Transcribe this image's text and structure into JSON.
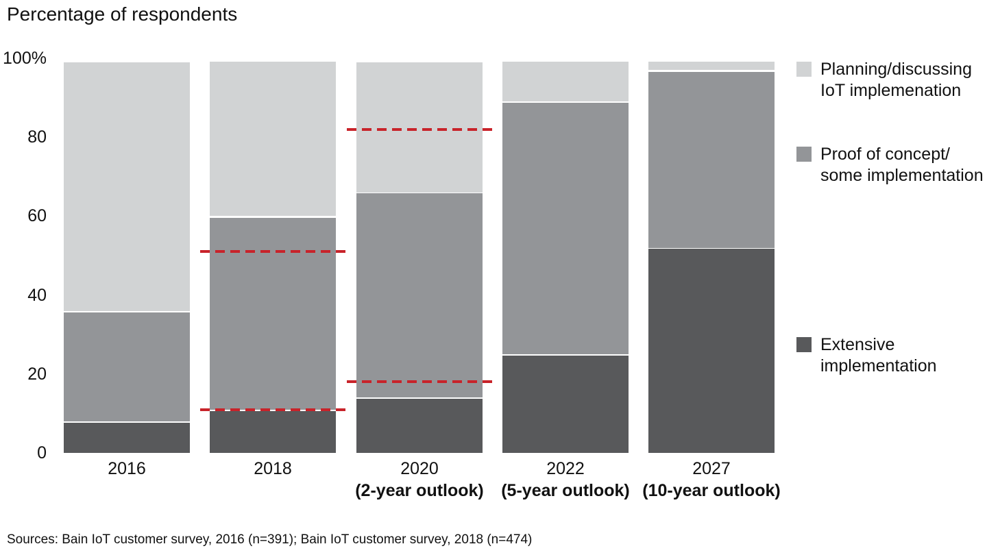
{
  "title": "Percentage of respondents",
  "source": "Sources: Bain IoT customer survey, 2016 (n=391); Bain IoT customer survey, 2018 (n=474)",
  "colors": {
    "planning": "#d1d3d4",
    "proof": "#939598",
    "extensive": "#58595b",
    "reference_red": "#c8232a",
    "text": "#111111",
    "background": "#ffffff"
  },
  "chart_data": {
    "type": "bar",
    "stacked": true,
    "title": "Percentage of respondents",
    "xlabel": "",
    "ylabel": "Percentage of respondents",
    "ylim": [
      0,
      100
    ],
    "grid": false,
    "legend_position": "right",
    "categories": [
      "2016",
      "2018",
      "2020",
      "2022",
      "2027"
    ],
    "category_sublabels": [
      "",
      "",
      "(2-year outlook)",
      "(5-year outlook)",
      "(10-year outlook)"
    ],
    "series": [
      {
        "name": "Extensive implementation",
        "color_key": "extensive",
        "values": [
          8,
          11,
          14,
          25,
          52
        ]
      },
      {
        "name": "Proof of concept/some implementation",
        "color_key": "proof",
        "values": [
          28,
          49,
          52,
          64,
          45
        ]
      },
      {
        "name": "Planning/discussing IoT implemenation",
        "color_key": "planning",
        "values": [
          63,
          39,
          33,
          10,
          2
        ]
      }
    ],
    "y_ticks": [
      {
        "label": "100%",
        "value": 100
      },
      {
        "label": "80",
        "value": 80
      },
      {
        "label": "60",
        "value": 60
      },
      {
        "label": "40",
        "value": 40
      },
      {
        "label": "20",
        "value": 20
      },
      {
        "label": "0",
        "value": 0
      }
    ],
    "reference_lines": [
      {
        "value": 82,
        "over_category": "2020",
        "style": "dashed",
        "color_key": "reference_red"
      },
      {
        "value": 51,
        "over_category": "2018",
        "style": "dashed",
        "color_key": "reference_red"
      },
      {
        "value": 18,
        "over_category": "2020",
        "style": "dashed",
        "color_key": "reference_red"
      },
      {
        "value": 11,
        "over_category": "2018",
        "style": "dashed",
        "color_key": "reference_red"
      }
    ]
  },
  "legend": {
    "items": [
      {
        "label_lines": [
          "Planning/discussing",
          "IoT implemenation"
        ],
        "color_key": "planning"
      },
      {
        "label_lines": [
          "Proof of concept/",
          "some implementation"
        ],
        "color_key": "proof"
      },
      {
        "label_lines": [
          "Extensive",
          "implementation"
        ],
        "color_key": "extensive"
      }
    ]
  }
}
